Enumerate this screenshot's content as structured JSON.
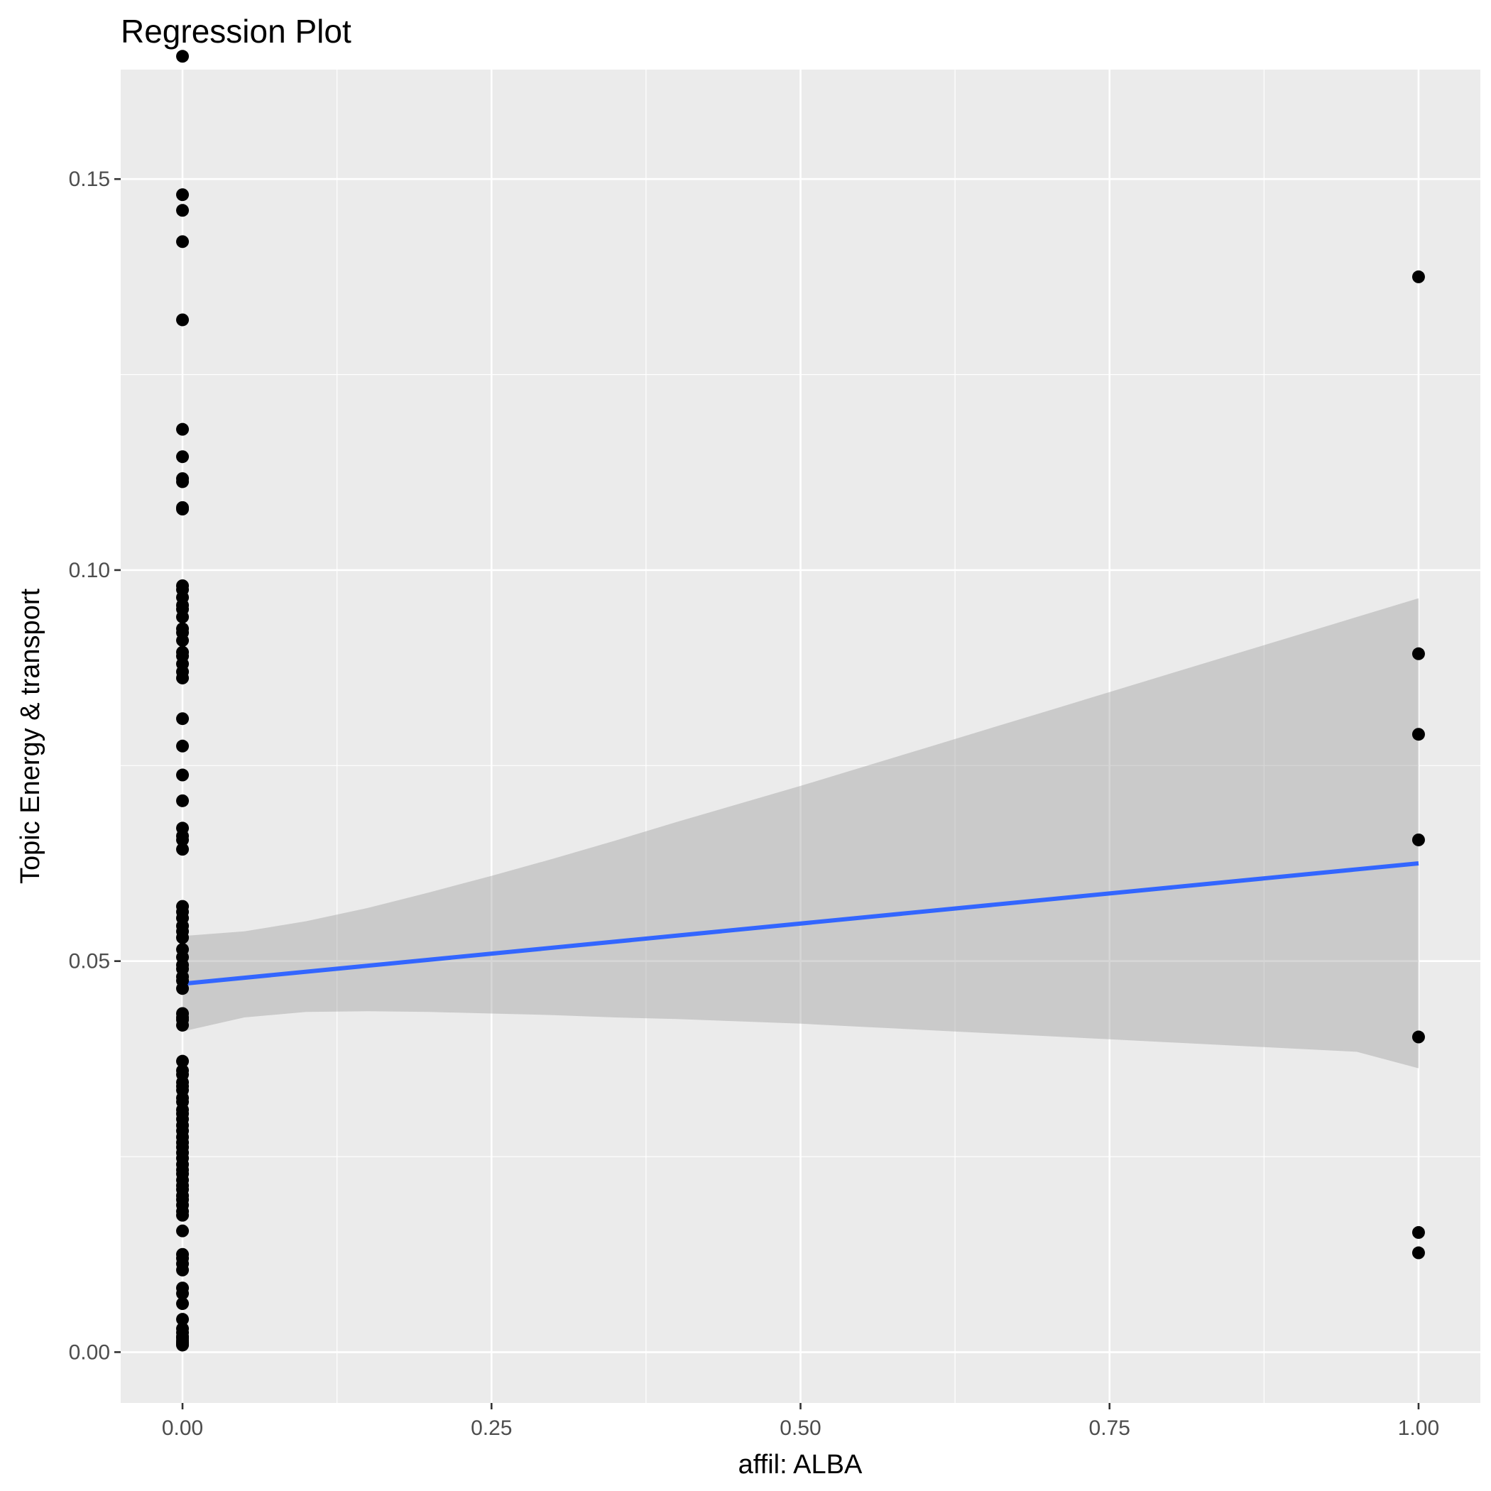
{
  "chart_data": {
    "type": "scatter",
    "title": "Regression Plot",
    "xlabel": "affil: ALBA",
    "ylabel": "Topic Energy & transport",
    "xlim": [
      -0.05,
      1.05
    ],
    "ylim": [
      -0.0065,
      0.164
    ],
    "x_ticks": [
      "0.00",
      "0.25",
      "0.50",
      "0.75",
      "1.00"
    ],
    "y_ticks": [
      "0.00",
      "0.05",
      "0.10",
      "0.15"
    ],
    "grid": true,
    "series": [
      {
        "type": "points",
        "color": "#000000",
        "x": [
          0,
          0,
          0,
          0,
          0,
          0,
          0,
          0,
          0,
          0,
          0,
          0,
          0,
          0,
          0,
          0,
          0,
          0,
          0,
          0,
          0,
          0,
          0,
          0,
          0,
          0,
          0,
          0,
          0,
          0,
          0,
          0,
          0,
          0,
          0,
          0,
          0,
          0,
          0,
          0,
          0,
          0,
          0,
          0,
          0,
          0,
          0,
          0,
          0,
          0,
          0,
          0,
          0,
          0,
          0,
          0,
          0,
          0,
          0,
          0,
          0,
          0,
          0,
          0,
          0,
          0,
          0,
          0,
          0,
          0,
          0,
          0,
          0,
          0,
          0,
          0,
          0,
          0,
          0,
          0,
          0,
          0,
          0,
          0,
          0,
          0,
          0,
          0,
          0,
          0,
          0,
          0,
          0,
          0,
          0,
          0,
          0,
          0,
          1,
          1,
          1,
          1,
          1,
          1,
          1
        ],
        "y": [
          0.1657,
          0.148,
          0.146,
          0.142,
          0.132,
          0.118,
          0.1145,
          0.1117,
          0.1113,
          0.108,
          0.1078,
          0.098,
          0.0975,
          0.0965,
          0.0955,
          0.095,
          0.094,
          0.0925,
          0.092,
          0.091,
          0.0895,
          0.089,
          0.088,
          0.087,
          0.0862,
          0.081,
          0.0775,
          0.0738,
          0.0705,
          0.067,
          0.066,
          0.0655,
          0.0643,
          0.057,
          0.0563,
          0.0555,
          0.0545,
          0.0538,
          0.053,
          0.0515,
          0.0505,
          0.0495,
          0.049,
          0.048,
          0.0475,
          0.0465,
          0.0433,
          0.0428,
          0.0425,
          0.0418,
          0.0372,
          0.036,
          0.0355,
          0.0345,
          0.034,
          0.0335,
          0.0325,
          0.032,
          0.031,
          0.0305,
          0.0298,
          0.029,
          0.0283,
          0.0275,
          0.0268,
          0.0262,
          0.0255,
          0.0248,
          0.024,
          0.0233,
          0.0228,
          0.022,
          0.0213,
          0.0208,
          0.02,
          0.0195,
          0.0188,
          0.018,
          0.0175,
          0.0155,
          0.0125,
          0.012,
          0.0113,
          0.0105,
          0.0082,
          0.0075,
          0.0062,
          0.0042,
          0.003,
          0.0025,
          0.002,
          0.0018,
          0.0015,
          0.0013,
          0.0012,
          0.0011,
          0.001,
          0.0009,
          0.1375,
          0.0893,
          0.079,
          0.0655,
          0.0403,
          0.0153,
          0.0127
        ]
      }
    ],
    "regression": {
      "color": "#3366FF",
      "x": [
        0,
        1
      ],
      "y": [
        0.0471,
        0.0625
      ]
    },
    "confidence_band": {
      "color": "#999999",
      "x": [
        0,
        0.05,
        0.1,
        0.15,
        0.2,
        0.25,
        0.3,
        0.35,
        0.4,
        0.45,
        0.5,
        0.55,
        0.6,
        0.65,
        0.7,
        0.75,
        0.8,
        0.85,
        0.9,
        0.95,
        1
      ],
      "upper": [
        0.0532,
        0.0538,
        0.0551,
        0.0568,
        0.0588,
        0.0609,
        0.0631,
        0.0654,
        0.0678,
        0.0701,
        0.0724,
        0.0748,
        0.0772,
        0.0796,
        0.082,
        0.0844,
        0.0868,
        0.0892,
        0.0916,
        0.094,
        0.0964
      ],
      "lower": [
        0.041,
        0.0428,
        0.0435,
        0.0436,
        0.0435,
        0.0433,
        0.0431,
        0.0428,
        0.0426,
        0.0423,
        0.042,
        0.0416,
        0.0412,
        0.0408,
        0.0404,
        0.04,
        0.0396,
        0.0392,
        0.0388,
        0.0384,
        0.0363
      ]
    }
  }
}
